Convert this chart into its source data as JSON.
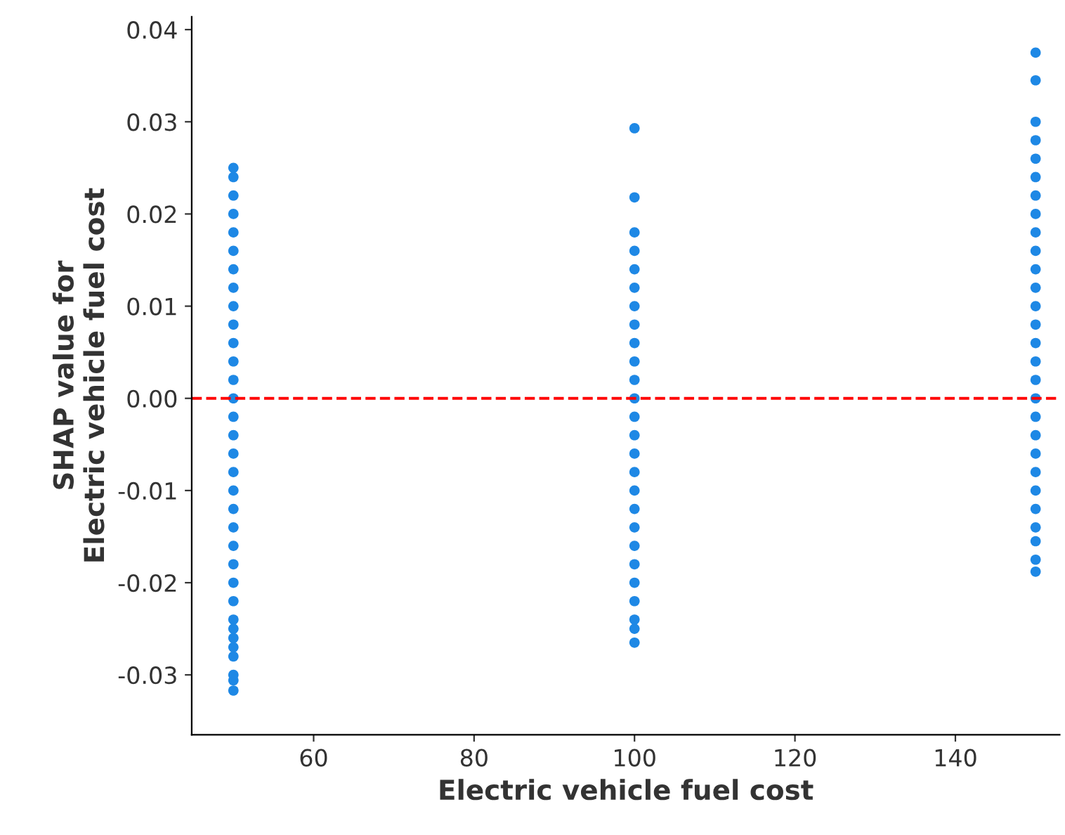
{
  "chart_data": {
    "type": "scatter",
    "xlabel": "Electric vehicle fuel cost",
    "ylabel": "SHAP value for\nElectric vehicle fuel cost",
    "xlim": [
      44.8,
      153
    ],
    "xticks": [
      60,
      80,
      100,
      120,
      140
    ],
    "ylim": [
      -0.0365,
      0.0414
    ],
    "yticks": [
      {
        "value": -0.03,
        "label": "-0.03"
      },
      {
        "value": -0.02,
        "label": "-0.02"
      },
      {
        "value": -0.01,
        "label": "-0.01"
      },
      {
        "value": 0,
        "label": "0.00"
      },
      {
        "value": 0.01,
        "label": "0.01"
      },
      {
        "value": 0.02,
        "label": "0.02"
      },
      {
        "value": 0.03,
        "label": "0.03"
      },
      {
        "value": 0.04,
        "label": "0.04"
      }
    ],
    "marker": "circle",
    "grid": false,
    "legend": false,
    "series": [
      {
        "color": "#1e88e5",
        "x": [
          50,
          50,
          50,
          50,
          50,
          50,
          50,
          50,
          50,
          50,
          50,
          50,
          50,
          50,
          50,
          50,
          50,
          50,
          50,
          50,
          50,
          50,
          50,
          50,
          50,
          50,
          50,
          50,
          50,
          50,
          50,
          50,
          50
        ],
        "values": [
          -0.0317,
          -0.0306,
          -0.03,
          -0.028,
          -0.026,
          -0.024,
          -0.022,
          -0.02,
          -0.018,
          -0.016,
          -0.014,
          -0.012,
          -0.01,
          -0.008,
          -0.006,
          -0.004,
          -0.002,
          0,
          0.002,
          0.004,
          0.006,
          0.008,
          0.01,
          0.012,
          0.014,
          0.016,
          0.018,
          0.02,
          0.022,
          0.024,
          0.025,
          -0.027,
          -0.025
        ]
      },
      {
        "color": "#1e88e5",
        "x": [
          100,
          100,
          100,
          100,
          100,
          100,
          100,
          100,
          100,
          100,
          100,
          100,
          100,
          100,
          100,
          100,
          100,
          100,
          100,
          100,
          100,
          100,
          100,
          100,
          100,
          100
        ],
        "values": [
          -0.0265,
          -0.025,
          -0.024,
          -0.022,
          -0.02,
          -0.018,
          -0.016,
          -0.014,
          -0.012,
          -0.01,
          -0.008,
          -0.006,
          -0.004,
          -0.002,
          0,
          0.002,
          0.004,
          0.006,
          0.008,
          0.01,
          0.012,
          0.014,
          0.016,
          0.018,
          0.0218,
          0.0293
        ]
      },
      {
        "color": "#1e88e5",
        "x": [
          150,
          150,
          150,
          150,
          150,
          150,
          150,
          150,
          150,
          150,
          150,
          150,
          150,
          150,
          150,
          150,
          150,
          150,
          150,
          150,
          150,
          150,
          150,
          150,
          150,
          150,
          150,
          150
        ],
        "values": [
          -0.0188,
          -0.0175,
          -0.0155,
          -0.014,
          -0.012,
          -0.01,
          -0.008,
          -0.006,
          -0.004,
          -0.002,
          0,
          0.002,
          0.004,
          0.006,
          0.008,
          0.01,
          0.012,
          0.014,
          0.016,
          0.018,
          0.02,
          0.022,
          0.024,
          0.026,
          0.028,
          0.03,
          0.0345,
          0.0375
        ]
      }
    ],
    "ref_lines": [
      {
        "axis": "y",
        "value": 0,
        "color": "#ff0000",
        "line_style": "dashed"
      }
    ]
  }
}
